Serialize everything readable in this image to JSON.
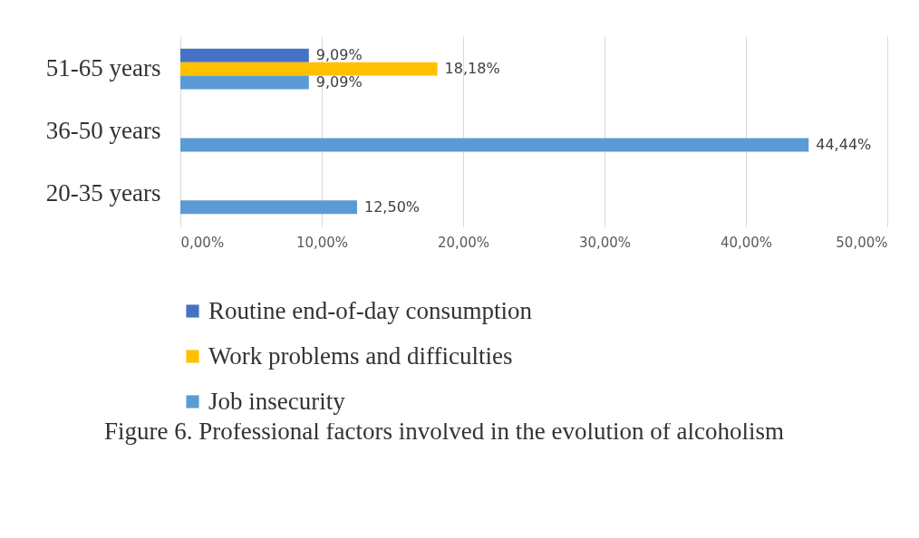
{
  "chart_data": {
    "type": "bar",
    "orientation": "horizontal",
    "categories": [
      "51-65 years",
      "36-50 years",
      "20-35 years"
    ],
    "series": [
      {
        "name": "Routine end-of-day consumption",
        "color": "#4472c4",
        "values": [
          9.09,
          null,
          null
        ],
        "value_labels": [
          "9,09%",
          null,
          null
        ]
      },
      {
        "name": "Work problems and difficulties",
        "color": "#ffc000",
        "values": [
          18.18,
          null,
          null
        ],
        "value_labels": [
          "18,18%",
          null,
          null
        ]
      },
      {
        "name": "Job insecurity",
        "color": "#5b9bd5",
        "values": [
          9.09,
          44.44,
          12.5
        ],
        "value_labels": [
          "9,09%",
          "44,44%",
          "12,50%"
        ]
      }
    ],
    "xlim": [
      0,
      50
    ],
    "xticks": [
      {
        "value": 0,
        "label": "0,00%"
      },
      {
        "value": 10,
        "label": "10,00%"
      },
      {
        "value": 20,
        "label": "20,00%"
      },
      {
        "value": 30,
        "label": "30,00%"
      },
      {
        "value": 40,
        "label": "40,00%"
      },
      {
        "value": 50,
        "label": "50,00%"
      }
    ],
    "grid": "x",
    "legend": "bottom",
    "annotations": [
      "Figure 6. Professional factors involved in the evolution of alcoholism"
    ]
  }
}
